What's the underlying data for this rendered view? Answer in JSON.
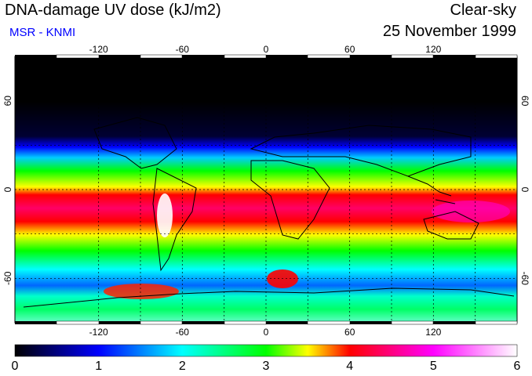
{
  "header": {
    "title": "DNA-damage UV dose (kJ/m2)",
    "source": "MSR - KNMI",
    "mode": "Clear-sky",
    "date": "25 November 1999"
  },
  "map": {
    "projection": "equirectangular",
    "lon_range": [
      -180,
      180
    ],
    "lat_range": [
      -90,
      90
    ],
    "lon_ticks": [
      "-120",
      "-60",
      "0",
      "60",
      "120"
    ],
    "lat_ticks": [
      "60",
      "0",
      "-60"
    ],
    "graticule": "dashed every 30 degrees"
  },
  "colorbar": {
    "min": 0,
    "max": 6,
    "labels": [
      "0",
      "1",
      "2",
      "3",
      "4",
      "5",
      "6"
    ],
    "colors": [
      "#000000",
      "#0000ff",
      "#00ffff",
      "#00ff00",
      "#ffff00",
      "#ff0000",
      "#ff00ff",
      "#ffffff"
    ]
  },
  "colors": {
    "source_text": "#0000ff",
    "coastline": "#000000"
  }
}
